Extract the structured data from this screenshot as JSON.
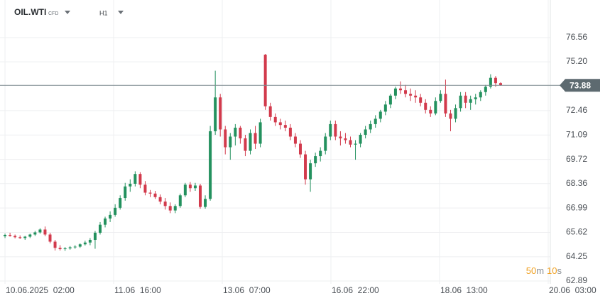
{
  "chart_data": {
    "type": "candlestick",
    "symbol": "OIL.WTI",
    "instrument_type": "CFD",
    "timeframe": "H1",
    "up_color": "#23915e",
    "down_color": "#d23a4c",
    "grid": true,
    "ylim": [
      62.73,
      78.67
    ],
    "yticks": [
      76.56,
      {
        "value": 75.2,
        "label": "75.20"
      },
      72.46,
      71.09,
      69.72,
      68.36,
      66.99,
      65.62,
      64.25,
      62.89
    ],
    "xlim": [
      -1,
      109.5
    ],
    "xticks": [
      {
        "value": 0,
        "label": "10.06.2025  02:00"
      },
      {
        "value": 21.7,
        "label": "11.06  16:00"
      },
      {
        "value": 43.4,
        "label": "13.06  07:00"
      },
      {
        "value": 65.1,
        "label": "16.06  22:00"
      },
      {
        "value": 86.8,
        "label": "18.06  13:00"
      },
      {
        "value": 108.5,
        "label": "20.06  03:00"
      }
    ],
    "current_price": {
      "value": 73.88,
      "label": "73.88"
    },
    "countdown": {
      "minutes": "50",
      "minutes_unit": "m",
      "seconds": "10",
      "seconds_unit": "s"
    },
    "open": [
      65.4,
      65.48,
      65.42,
      65.35,
      65.3,
      65.38,
      65.5,
      65.62,
      65.78,
      65.5,
      65.1,
      64.75,
      64.68,
      64.72,
      64.78,
      64.82,
      64.95,
      65.05,
      65.2,
      65.6,
      66.05,
      66.4,
      66.6,
      67.0,
      67.55,
      68.2,
      68.35,
      68.9,
      68.3,
      67.85,
      67.8,
      67.6,
      67.35,
      67.1,
      66.85,
      67.1,
      67.7,
      68.3,
      68.1,
      68.25,
      67.05,
      67.5,
      71.3,
      73.2,
      71.4,
      70.4,
      71.0,
      71.5,
      70.9,
      70.2,
      71.2,
      70.6,
      75.6,
      72.7,
      72.1,
      71.8,
      71.65,
      71.5,
      71.0,
      70.6,
      70.0,
      68.6,
      69.5,
      69.9,
      70.2,
      71.0,
      71.7,
      71.0,
      70.9,
      70.8,
      70.55,
      70.6,
      71.1,
      71.4,
      71.7,
      72.0,
      72.4,
      72.8,
      73.3,
      73.7,
      73.6,
      73.4,
      73.3,
      73.2,
      72.9,
      72.5,
      72.3,
      73.0,
      73.4,
      72.3,
      72.0,
      72.6,
      73.3,
      72.9,
      73.1,
      73.2,
      73.5,
      73.8,
      74.3,
      74.0
    ],
    "high": [
      65.55,
      65.6,
      65.5,
      65.45,
      65.42,
      65.55,
      65.7,
      65.85,
      65.95,
      65.6,
      65.2,
      64.9,
      64.8,
      64.85,
      64.9,
      65.0,
      65.15,
      65.3,
      65.7,
      66.2,
      66.5,
      66.8,
      67.2,
      67.7,
      68.4,
      68.6,
      69.05,
      69.0,
      68.5,
      68.0,
      67.95,
      67.75,
      67.55,
      67.3,
      67.2,
      67.8,
      68.4,
      68.45,
      68.4,
      68.35,
      67.7,
      71.6,
      74.7,
      73.4,
      71.6,
      71.2,
      71.7,
      71.6,
      71.1,
      71.4,
      71.6,
      72.0,
      75.64,
      72.9,
      72.3,
      72.0,
      71.9,
      71.7,
      71.2,
      70.8,
      70.2,
      69.7,
      70.1,
      70.4,
      71.2,
      71.9,
      71.9,
      71.3,
      71.2,
      71.0,
      70.8,
      71.2,
      71.6,
      71.9,
      72.2,
      72.5,
      73.0,
      73.4,
      73.8,
      74.1,
      73.9,
      73.7,
      73.6,
      73.4,
      73.1,
      72.7,
      73.2,
      73.6,
      74.2,
      72.5,
      72.8,
      73.5,
      73.5,
      73.3,
      73.4,
      73.6,
      73.9,
      74.5,
      74.4,
      74.05
    ],
    "low": [
      65.3,
      65.38,
      65.28,
      65.25,
      65.2,
      65.3,
      65.42,
      65.55,
      65.4,
      65.0,
      64.6,
      64.6,
      64.58,
      64.65,
      64.7,
      64.75,
      64.88,
      64.9,
      64.7,
      65.5,
      65.9,
      66.2,
      66.5,
      66.9,
      67.4,
      67.9,
      68.2,
      68.1,
      67.7,
      67.6,
      67.5,
      67.2,
      66.9,
      66.7,
      66.7,
      67.0,
      67.6,
      67.9,
      67.95,
      66.95,
      66.95,
      67.4,
      71.1,
      71.0,
      70.0,
      69.7,
      70.5,
      70.6,
      69.9,
      70.0,
      70.3,
      70.4,
      72.5,
      71.9,
      71.6,
      71.4,
      71.3,
      70.8,
      70.4,
      69.8,
      68.3,
      67.9,
      69.3,
      69.6,
      70.0,
      70.8,
      70.8,
      70.5,
      70.6,
      70.4,
      69.7,
      70.4,
      70.9,
      71.2,
      71.5,
      71.8,
      72.2,
      72.6,
      73.1,
      73.4,
      73.2,
      73.0,
      72.9,
      72.7,
      72.3,
      72.1,
      72.2,
      72.9,
      72.1,
      71.3,
      71.8,
      72.4,
      72.6,
      72.5,
      72.8,
      73.0,
      73.3,
      73.7,
      73.8,
      73.85
    ],
    "close": [
      65.48,
      65.42,
      65.35,
      65.3,
      65.38,
      65.5,
      65.62,
      65.78,
      65.5,
      65.1,
      64.75,
      64.68,
      64.72,
      64.78,
      64.82,
      64.95,
      65.05,
      65.2,
      65.6,
      66.05,
      66.4,
      66.6,
      67.0,
      67.55,
      68.2,
      68.35,
      68.9,
      68.3,
      67.85,
      67.8,
      67.6,
      67.35,
      67.1,
      66.85,
      67.1,
      67.7,
      68.3,
      68.1,
      68.25,
      67.05,
      67.5,
      71.3,
      73.2,
      71.4,
      70.4,
      71.0,
      71.5,
      70.9,
      70.2,
      71.2,
      70.6,
      71.8,
      72.7,
      72.1,
      71.8,
      71.65,
      71.5,
      71.0,
      70.6,
      70.0,
      68.6,
      69.5,
      69.9,
      70.2,
      71.0,
      71.7,
      71.0,
      70.9,
      70.8,
      70.55,
      70.6,
      71.1,
      71.4,
      71.7,
      72.0,
      72.4,
      72.8,
      73.3,
      73.7,
      73.6,
      73.4,
      73.3,
      73.2,
      72.9,
      72.5,
      72.3,
      73.0,
      73.4,
      72.3,
      72.0,
      72.6,
      73.3,
      72.9,
      73.1,
      73.2,
      73.5,
      73.8,
      74.3,
      74.0,
      73.88
    ]
  }
}
